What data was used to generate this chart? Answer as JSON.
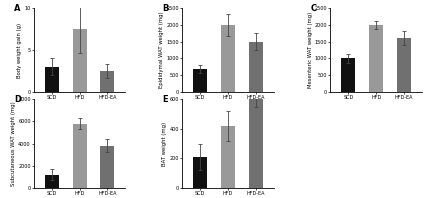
{
  "panels": [
    {
      "label": "A",
      "ylabel": "Body weight gain (g)",
      "ylim": [
        0,
        10
      ],
      "yticks": [
        0,
        5,
        10
      ],
      "categories": [
        "SCD",
        "HFD",
        "HFD-EA"
      ],
      "values": [
        3.0,
        7.5,
        2.5
      ],
      "errors": [
        1.0,
        2.8,
        0.8
      ],
      "bar_colors": [
        "#111111",
        "#999999",
        "#707070"
      ]
    },
    {
      "label": "B",
      "ylabel": "Epididymal WAT weight (mg)",
      "ylim": [
        0,
        2500
      ],
      "yticks": [
        0,
        500,
        1000,
        1500,
        2000,
        2500
      ],
      "categories": [
        "SCD",
        "HFD",
        "HFD-EA"
      ],
      "values": [
        680,
        2000,
        1500
      ],
      "errors": [
        110,
        320,
        260
      ],
      "bar_colors": [
        "#111111",
        "#999999",
        "#707070"
      ]
    },
    {
      "label": "C",
      "ylabel": "Mesenteric WAT weight (mg)",
      "ylim": [
        0,
        2500
      ],
      "yticks": [
        0,
        500,
        1000,
        1500,
        2000,
        2500
      ],
      "categories": [
        "SCD",
        "HFD",
        "HFD-EA"
      ],
      "values": [
        1000,
        2000,
        1600
      ],
      "errors": [
        130,
        120,
        200
      ],
      "bar_colors": [
        "#111111",
        "#999999",
        "#707070"
      ]
    },
    {
      "label": "D",
      "ylabel": "Subcutaneous WAT weight (mg)",
      "ylim": [
        0,
        8000
      ],
      "yticks": [
        0,
        2000,
        4000,
        6000,
        8000
      ],
      "categories": [
        "SCD",
        "HFD",
        "HFD-EA"
      ],
      "values": [
        1200,
        5800,
        3800
      ],
      "errors": [
        500,
        500,
        600
      ],
      "bar_colors": [
        "#111111",
        "#999999",
        "#707070"
      ]
    },
    {
      "label": "E",
      "ylabel": "BAT weight (mg)",
      "ylim": [
        0,
        600
      ],
      "yticks": [
        0,
        200,
        400,
        600
      ],
      "categories": [
        "SCD",
        "HFD",
        "HFD-EA"
      ],
      "values": [
        210,
        420,
        600
      ],
      "errors": [
        90,
        100,
        55
      ],
      "bar_colors": [
        "#111111",
        "#999999",
        "#707070"
      ]
    }
  ],
  "bar_width": 0.5,
  "fig_bg": "#ffffff",
  "axis_linewidth": 0.6,
  "fontsize_label": 3.8,
  "fontsize_tick": 3.5,
  "fontsize_panel_label": 6.0,
  "error_capsize": 1.2,
  "error_lw": 0.6
}
